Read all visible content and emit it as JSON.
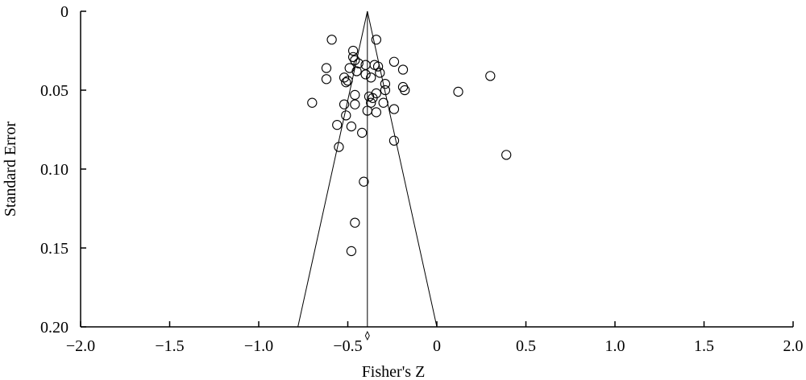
{
  "chart_data": {
    "type": "scatter",
    "xlabel": "Fisher's Z",
    "ylabel": "Standard Error",
    "xlim": [
      -2.0,
      2.0
    ],
    "ylim": [
      0,
      0.2
    ],
    "y_reversed": true,
    "x_ticks": [
      -2.0,
      -1.5,
      -1.0,
      -0.5,
      0,
      0.5,
      1.0,
      1.5,
      2.0
    ],
    "x_tick_labels": [
      "−2.0",
      "−1.5",
      "−1.0",
      "−0.5",
      "0",
      "0.5",
      "1.0",
      "1.5",
      "2.0"
    ],
    "y_ticks": [
      0,
      0.05,
      0.1,
      0.15,
      0.2
    ],
    "y_tick_labels": [
      "0",
      "0.05",
      "0.10",
      "0.15",
      "0.20"
    ],
    "pooled_effect": -0.39,
    "funnel_base": [
      -0.78,
      0.0
    ],
    "grid": false,
    "points": [
      {
        "x": -0.59,
        "y": 0.018
      },
      {
        "x": -0.34,
        "y": 0.018
      },
      {
        "x": -0.47,
        "y": 0.025
      },
      {
        "x": -0.47,
        "y": 0.029
      },
      {
        "x": -0.46,
        "y": 0.031
      },
      {
        "x": -0.44,
        "y": 0.033
      },
      {
        "x": -0.24,
        "y": 0.032
      },
      {
        "x": -0.62,
        "y": 0.036
      },
      {
        "x": -0.49,
        "y": 0.036
      },
      {
        "x": -0.4,
        "y": 0.034
      },
      {
        "x": -0.35,
        "y": 0.034
      },
      {
        "x": -0.33,
        "y": 0.035
      },
      {
        "x": -0.19,
        "y": 0.037
      },
      {
        "x": -0.45,
        "y": 0.038
      },
      {
        "x": -0.32,
        "y": 0.039
      },
      {
        "x": -0.4,
        "y": 0.04
      },
      {
        "x": -0.62,
        "y": 0.043
      },
      {
        "x": -0.52,
        "y": 0.042
      },
      {
        "x": -0.5,
        "y": 0.044
      },
      {
        "x": -0.51,
        "y": 0.045
      },
      {
        "x": -0.37,
        "y": 0.042
      },
      {
        "x": 0.3,
        "y": 0.041
      },
      {
        "x": -0.29,
        "y": 0.046
      },
      {
        "x": -0.19,
        "y": 0.048
      },
      {
        "x": -0.18,
        "y": 0.05
      },
      {
        "x": -0.29,
        "y": 0.05
      },
      {
        "x": 0.12,
        "y": 0.051
      },
      {
        "x": -0.34,
        "y": 0.052
      },
      {
        "x": -0.46,
        "y": 0.053
      },
      {
        "x": -0.38,
        "y": 0.054
      },
      {
        "x": -0.36,
        "y": 0.055
      },
      {
        "x": -0.7,
        "y": 0.058
      },
      {
        "x": -0.52,
        "y": 0.059
      },
      {
        "x": -0.46,
        "y": 0.059
      },
      {
        "x": -0.37,
        "y": 0.058
      },
      {
        "x": -0.3,
        "y": 0.058
      },
      {
        "x": -0.24,
        "y": 0.062
      },
      {
        "x": -0.39,
        "y": 0.063
      },
      {
        "x": -0.34,
        "y": 0.064
      },
      {
        "x": -0.51,
        "y": 0.066
      },
      {
        "x": -0.56,
        "y": 0.072
      },
      {
        "x": -0.48,
        "y": 0.073
      },
      {
        "x": -0.42,
        "y": 0.077
      },
      {
        "x": -0.24,
        "y": 0.082
      },
      {
        "x": -0.55,
        "y": 0.086
      },
      {
        "x": 0.39,
        "y": 0.091
      },
      {
        "x": -0.41,
        "y": 0.108
      },
      {
        "x": -0.46,
        "y": 0.134
      },
      {
        "x": -0.48,
        "y": 0.152
      }
    ]
  }
}
